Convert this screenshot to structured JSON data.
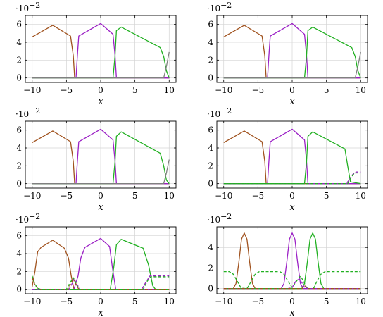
{
  "chart_data": [
    {
      "type": "line",
      "xlabel": "x",
      "ylabel_multiplier": "·10",
      "ylabel_multiplier_exp": "−2",
      "xlim": [
        -11,
        11
      ],
      "ylim": [
        -0.5,
        7
      ],
      "xticks": [
        "−10",
        "−5",
        "0",
        "5",
        "10"
      ],
      "yticks": [
        "0",
        "2",
        "4",
        "6"
      ],
      "grid": true,
      "series": [
        {
          "color": "#a0521e",
          "dashed": false,
          "x": [
            -10,
            -7,
            -4.4,
            -4,
            -3.8,
            -3.6,
            10
          ],
          "y": [
            4.6,
            5.9,
            4.7,
            2.5,
            0,
            0,
            0
          ]
        },
        {
          "color": "#9b20c5",
          "dashed": false,
          "x": [
            -10,
            -3.6,
            -3.4,
            -3.2,
            0,
            1.8,
            2.1,
            2.3,
            10
          ],
          "y": [
            0,
            0,
            2.5,
            4.7,
            6.1,
            4.9,
            2.5,
            0,
            0
          ]
        },
        {
          "color": "#21b021",
          "dashed": false,
          "x": [
            -10,
            1.8,
            2.1,
            2.3,
            3,
            8.7,
            9.2,
            9.6,
            10
          ],
          "y": [
            0,
            0,
            2.5,
            5.3,
            5.7,
            3.4,
            2.4,
            0.8,
            0
          ]
        },
        {
          "color": "#808080",
          "dashed": false,
          "x": [
            -10,
            9.2,
            9.6,
            10
          ],
          "y": [
            0,
            0,
            1.3,
            2.9
          ]
        }
      ]
    },
    {
      "type": "line",
      "xlabel": "x",
      "ylabel_multiplier": "·10",
      "ylabel_multiplier_exp": "−2",
      "xlim": [
        -11,
        11
      ],
      "ylim": [
        -0.5,
        7
      ],
      "xticks": [
        "−10",
        "−5",
        "0",
        "5",
        "10"
      ],
      "yticks": [
        "0",
        "2",
        "4",
        "6"
      ],
      "grid": true,
      "series": [
        {
          "color": "#a0521e",
          "dashed": false,
          "x": [
            -10,
            -7,
            -4.4,
            -4,
            -3.8,
            -3.6,
            10
          ],
          "y": [
            4.6,
            5.9,
            4.7,
            2.5,
            0,
            0,
            0
          ]
        },
        {
          "color": "#9b20c5",
          "dashed": false,
          "x": [
            -10,
            -3.6,
            -3.4,
            -3.2,
            0,
            1.8,
            2.1,
            2.3,
            10
          ],
          "y": [
            0,
            0,
            2.5,
            4.7,
            6.1,
            4.9,
            2.5,
            0,
            0
          ]
        },
        {
          "color": "#21b021",
          "dashed": false,
          "x": [
            -10,
            1.8,
            2.1,
            2.3,
            3,
            8.7,
            9.2,
            9.6,
            10
          ],
          "y": [
            0,
            0,
            2.5,
            5.3,
            5.7,
            3.4,
            2.4,
            0.8,
            0
          ]
        },
        {
          "color": "#808080",
          "dashed": false,
          "x": [
            -10,
            9.2,
            9.6,
            10
          ],
          "y": [
            0,
            0,
            1.3,
            2.9
          ]
        }
      ]
    },
    {
      "type": "line",
      "xlabel": "x",
      "ylabel_multiplier": "·10",
      "ylabel_multiplier_exp": "−2",
      "xlim": [
        -11,
        11
      ],
      "ylim": [
        -0.5,
        7
      ],
      "xticks": [
        "−10",
        "−5",
        "0",
        "5",
        "10"
      ],
      "yticks": [
        "0",
        "2",
        "4",
        "6"
      ],
      "grid": true,
      "series": [
        {
          "color": "#a0521e",
          "dashed": false,
          "x": [
            -10,
            -7,
            -4.4,
            -4,
            -3.8,
            -3.6,
            10
          ],
          "y": [
            4.6,
            5.9,
            4.7,
            2.5,
            0,
            0,
            0
          ]
        },
        {
          "color": "#9b20c5",
          "dashed": false,
          "x": [
            -10,
            -3.6,
            -3.4,
            -3.2,
            0,
            1.8,
            2.1,
            2.3,
            10
          ],
          "y": [
            0,
            0,
            2.5,
            4.7,
            6.1,
            4.9,
            2.5,
            0,
            0
          ]
        },
        {
          "color": "#21b021",
          "dashed": false,
          "x": [
            -10,
            1.8,
            2.1,
            2.3,
            3,
            8.7,
            9.2,
            9.6,
            10
          ],
          "y": [
            0,
            0,
            2.5,
            5.3,
            5.8,
            3.4,
            2.0,
            0.4,
            0
          ]
        },
        {
          "color": "#808080",
          "dashed": false,
          "x": [
            -10,
            9.2,
            9.6,
            10
          ],
          "y": [
            0,
            0,
            1.2,
            2.7
          ]
        }
      ]
    },
    {
      "type": "line",
      "xlabel": "x",
      "ylabel_multiplier": "·10",
      "ylabel_multiplier_exp": "−2",
      "xlim": [
        -11,
        11
      ],
      "ylim": [
        -0.5,
        7
      ],
      "xticks": [
        "−10",
        "−5",
        "0",
        "5",
        "10"
      ],
      "yticks": [
        "0",
        "2",
        "4",
        "6"
      ],
      "grid": true,
      "series": [
        {
          "color": "#a0521e",
          "dashed": false,
          "x": [
            -10,
            -7,
            -4.4,
            -4,
            -3.8,
            -3.6,
            10
          ],
          "y": [
            4.6,
            5.9,
            4.7,
            2.5,
            0,
            0,
            0
          ]
        },
        {
          "color": "#9b20c5",
          "dashed": false,
          "x": [
            -10,
            -3.6,
            -3.4,
            -3.2,
            0,
            1.8,
            2.1,
            2.3,
            10
          ],
          "y": [
            0,
            0,
            2.5,
            4.7,
            6.1,
            4.9,
            2.5,
            0,
            0
          ]
        },
        {
          "color": "#21b021",
          "dashed": false,
          "x": [
            -10,
            1.8,
            2.1,
            2.3,
            3,
            7.7,
            8.1,
            8.5,
            10
          ],
          "y": [
            0,
            0,
            2.5,
            5.3,
            5.8,
            3.9,
            2.0,
            0.2,
            0
          ]
        },
        {
          "color": "#9b20c5",
          "dashed": true,
          "x": [
            -10,
            7.9,
            8.3,
            8.8,
            9.3,
            10
          ],
          "y": [
            0,
            0,
            0.4,
            1.0,
            1.3,
            1.3
          ]
        },
        {
          "color": "#21b021",
          "dashed": true,
          "x": [
            -10,
            8.1,
            8.6,
            9.1,
            10
          ],
          "y": [
            0,
            0,
            0.7,
            1.2,
            1.2
          ]
        }
      ]
    },
    {
      "type": "line",
      "xlabel": "x",
      "ylabel_multiplier": "·10",
      "ylabel_multiplier_exp": "−2",
      "xlim": [
        -11,
        11
      ],
      "ylim": [
        -0.5,
        7
      ],
      "xticks": [
        "−10",
        "−5",
        "0",
        "5",
        "10"
      ],
      "yticks": [
        "0",
        "2",
        "4",
        "6"
      ],
      "grid": true,
      "series": [
        {
          "color": "#a0521e",
          "dashed": false,
          "x": [
            -10,
            -9.6,
            -9.2,
            -8.7,
            -7,
            -5.3,
            -4.7,
            -4.3,
            -3.9,
            10
          ],
          "y": [
            0.3,
            2.0,
            4.2,
            4.7,
            5.5,
            4.6,
            3.5,
            1.5,
            0,
            0
          ]
        },
        {
          "color": "#9b20c5",
          "dashed": false,
          "x": [
            -10,
            -3.9,
            -3.3,
            -2.9,
            -2.3,
            0,
            1.3,
            1.7,
            2.2,
            10
          ],
          "y": [
            0,
            0,
            1.5,
            3.5,
            4.7,
            5.7,
            4.8,
            2.5,
            0,
            0
          ]
        },
        {
          "color": "#21b021",
          "dashed": false,
          "x": [
            -10,
            1.4,
            1.9,
            2.3,
            3,
            6.2,
            7,
            7.6,
            8,
            10
          ],
          "y": [
            0,
            0,
            2.4,
            5.0,
            5.6,
            4.6,
            2.7,
            0.4,
            0,
            0
          ]
        },
        {
          "color": "#a0521e",
          "dashed": true,
          "x": [
            -10,
            -9.6,
            -9.2,
            -8.8,
            -4.8,
            -4.4,
            -4,
            -3.6,
            -3.2,
            10
          ],
          "y": [
            1.3,
            0.5,
            0.1,
            0,
            0,
            0.6,
            1.2,
            0.6,
            0,
            0
          ]
        },
        {
          "color": "#9b20c5",
          "dashed": true,
          "x": [
            -10,
            -4.6,
            -4.2,
            -3.9,
            -3.5,
            -3,
            6,
            6.6,
            7.2,
            10
          ],
          "y": [
            0,
            0,
            0.6,
            1.2,
            0.6,
            0,
            0,
            0.8,
            1.5,
            1.5
          ]
        },
        {
          "color": "#21b021",
          "dashed": true,
          "x": [
            -10,
            -9.6,
            -9.2,
            -8.8,
            -5,
            -4.5,
            -4,
            -3.6,
            -3.2,
            6.2,
            6.8,
            7.3,
            10
          ],
          "y": [
            1.5,
            0.6,
            0.1,
            0,
            0,
            0.7,
            1.3,
            0.7,
            0,
            0,
            0.9,
            1.4,
            1.4
          ]
        }
      ]
    },
    {
      "type": "line",
      "xlabel": "x",
      "ylabel_multiplier": "·10",
      "ylabel_multiplier_exp": "−2",
      "xlim": [
        -11,
        11
      ],
      "ylim": [
        -0.5,
        6
      ],
      "xticks": [
        "−10",
        "−5",
        "0",
        "5",
        "10"
      ],
      "yticks": [
        "0",
        "2",
        "4"
      ],
      "grid": true,
      "series": [
        {
          "color": "#a0521e",
          "dashed": false,
          "x": [
            -10,
            -8.6,
            -8.2,
            -7.8,
            -7.4,
            -7,
            -6.6,
            -6.2,
            -5.8,
            -5.4,
            10
          ],
          "y": [
            0,
            0,
            0.5,
            2.5,
            4.8,
            5.4,
            4.8,
            2.5,
            0.5,
            0,
            0
          ]
        },
        {
          "color": "#9b20c5",
          "dashed": false,
          "x": [
            -10,
            -1.6,
            -1.2,
            -0.8,
            -0.4,
            0,
            0.4,
            0.8,
            1.2,
            1.6,
            10
          ],
          "y": [
            0,
            0,
            0.5,
            2.5,
            4.8,
            5.4,
            4.8,
            2.5,
            0.5,
            0,
            0
          ]
        },
        {
          "color": "#21b021",
          "dashed": false,
          "x": [
            -10,
            1.4,
            1.8,
            2.2,
            2.6,
            3,
            3.4,
            3.8,
            4.2,
            4.6,
            10
          ],
          "y": [
            0,
            0,
            0.5,
            2.5,
            4.8,
            5.4,
            4.8,
            2.5,
            0.5,
            0,
            0
          ]
        },
        {
          "color": "#21b021",
          "dashed": true,
          "x": [
            -10,
            -9.2,
            -8.6,
            -8,
            -7.5,
            -7,
            -6.5,
            -6,
            -5.4,
            -4.8,
            -1.8,
            -1.2,
            -0.6,
            0,
            0.6,
            1.2,
            1.6,
            2,
            2.4,
            2.8,
            3.2,
            3.6,
            4.2,
            4.8,
            10
          ],
          "y": [
            1.65,
            1.65,
            1.4,
            0.7,
            0.1,
            0,
            0.1,
            0.7,
            1.4,
            1.65,
            1.65,
            1.4,
            0.7,
            0.1,
            0.7,
            1.2,
            0.8,
            0.2,
            0,
            0,
            0.1,
            0.7,
            1.4,
            1.65,
            1.65
          ]
        },
        {
          "color": "#9b20c5",
          "dashed": true,
          "x": [
            -10,
            -0.6,
            0,
            0.6,
            1,
            1.4,
            1.8,
            2.4,
            10
          ],
          "y": [
            0,
            0,
            0.1,
            0.8,
            0.9,
            0.6,
            0.1,
            0,
            0
          ]
        },
        {
          "color": "#a0521e",
          "dashed": true,
          "x": [
            -10,
            1.4,
            1.8,
            2.2,
            10
          ],
          "y": [
            0,
            0,
            0.3,
            0,
            0
          ]
        }
      ]
    }
  ]
}
